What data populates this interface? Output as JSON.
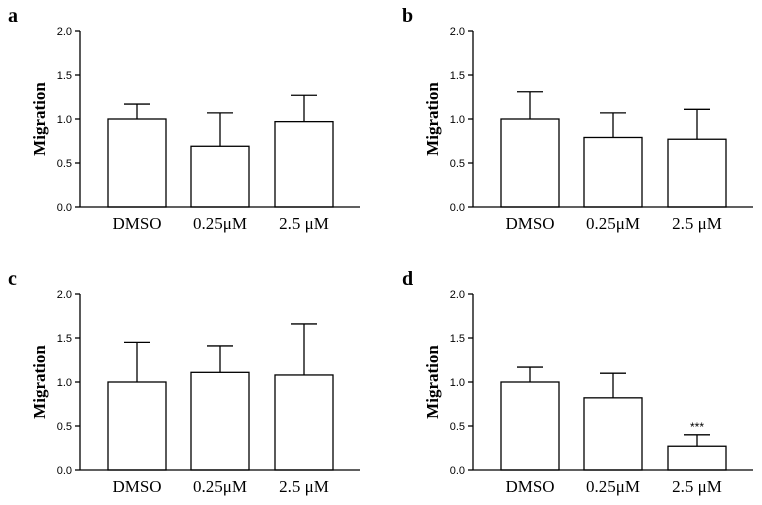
{
  "chart_data": [
    {
      "panel": "a",
      "type": "bar",
      "categories": [
        "DMSO",
        "0.25μM",
        "2.5 μM"
      ],
      "values": [
        1.0,
        0.69,
        0.97
      ],
      "errors": [
        0.17,
        0.38,
        0.3
      ],
      "annotations": [
        "",
        "",
        ""
      ],
      "ylabel": "Migration",
      "ylim": [
        0,
        2.0
      ],
      "yticks": [
        "0.0",
        "0.5",
        "1.0",
        "1.5",
        "2.0"
      ]
    },
    {
      "panel": "b",
      "type": "bar",
      "categories": [
        "DMSO",
        "0.25μM",
        "2.5 μM"
      ],
      "values": [
        1.0,
        0.79,
        0.77
      ],
      "errors": [
        0.31,
        0.28,
        0.34
      ],
      "annotations": [
        "",
        "",
        ""
      ],
      "ylabel": "Migration",
      "ylim": [
        0,
        2.0
      ],
      "yticks": [
        "0.0",
        "0.5",
        "1.0",
        "1.5",
        "2.0"
      ]
    },
    {
      "panel": "c",
      "type": "bar",
      "categories": [
        "DMSO",
        "0.25μM",
        "2.5 μM"
      ],
      "values": [
        1.0,
        1.11,
        1.08
      ],
      "errors": [
        0.45,
        0.3,
        0.58
      ],
      "annotations": [
        "",
        "",
        ""
      ],
      "ylabel": "Migration",
      "ylim": [
        0,
        2.0
      ],
      "yticks": [
        "0.0",
        "0.5",
        "1.0",
        "1.5",
        "2.0"
      ]
    },
    {
      "panel": "d",
      "type": "bar",
      "categories": [
        "DMSO",
        "0.25μM",
        "2.5 μM"
      ],
      "values": [
        1.0,
        0.82,
        0.27
      ],
      "errors": [
        0.17,
        0.28,
        0.13
      ],
      "annotations": [
        "",
        "",
        "***"
      ],
      "ylabel": "Migration",
      "ylim": [
        0,
        2.0
      ],
      "yticks": [
        "0.0",
        "0.5",
        "1.0",
        "1.5",
        "2.0"
      ]
    }
  ]
}
